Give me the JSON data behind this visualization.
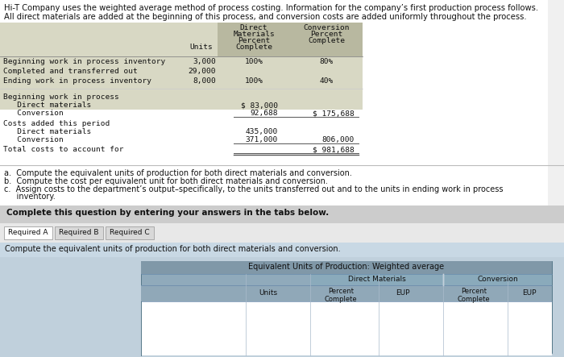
{
  "title_line1": "Hi-T Company uses the weighted average method of process costing. Information for the company’s first production process follows.",
  "title_line2": "All direct materials are added at the beginning of this process, and conversion costs are added uniformly throughout the process.",
  "rows_unit": [
    [
      "Beginning work in process inventory",
      "3,000",
      "100%",
      "80%"
    ],
    [
      "Completed and transferred out",
      "29,000",
      "",
      ""
    ],
    [
      "Ending work in process inventory",
      "8,000",
      "100%",
      "40%"
    ]
  ],
  "cost_rows": [
    [
      "Beginning work in process",
      "",
      "",
      false,
      false
    ],
    [
      "   Direct materials",
      "$ 83,000",
      "",
      false,
      false
    ],
    [
      "   Conversion",
      "92,688",
      "$ 175,688",
      true,
      false
    ],
    [
      "Costs added this period",
      "",
      "",
      false,
      false
    ],
    [
      "   Direct materials",
      "435,000",
      "",
      false,
      false
    ],
    [
      "   Conversion",
      "371,000",
      "806,000",
      false,
      false
    ],
    [
      "Total costs to account for",
      "",
      "$ 981,688",
      false,
      true
    ]
  ],
  "bullets": [
    "a.  Compute the equivalent units of production for both direct materials and conversion.",
    "b.  Compute the cost per equivalent unit for both direct materials and conversion.",
    "c.  Assign costs to the department’s output–specifically, to the units transferred out and to the units in ending work in process",
    "     inventory."
  ],
  "complete_text": "Complete this question by entering your answers in the tabs below.",
  "tabs": [
    "Required A",
    "Required B",
    "Required C"
  ],
  "instruction": "Compute the equivalent units of production for both direct materials and conversion.",
  "eup_title": "Equivalent Units of Production: Weighted average",
  "bg_white": "#ffffff",
  "bg_page": "#f0f0f0",
  "bg_table_header": "#b8b8a0",
  "bg_table_row": "#d8d8c4",
  "bg_complete_bar": "#cccccc",
  "bg_tab_panel": "#e8e8e8",
  "bg_tab_active": "#ffffff",
  "bg_tab_inactive": "#d8d8d8",
  "bg_instruction": "#c8d8e4",
  "bg_eup_outer": "#c0d0dc",
  "bg_eup_inner": "#90aabb",
  "bg_eup_title": "#8098a8",
  "bg_eup_dm": "#8aaabb",
  "bg_eup_conv": "#8aaabb",
  "bg_eup_subhdr": "#90a8b8",
  "bg_eup_datarow": "#ffffff",
  "text_dark": "#111111",
  "text_mono": "#1a1a1a",
  "border_gray": "#888888",
  "line_color": "#555555"
}
